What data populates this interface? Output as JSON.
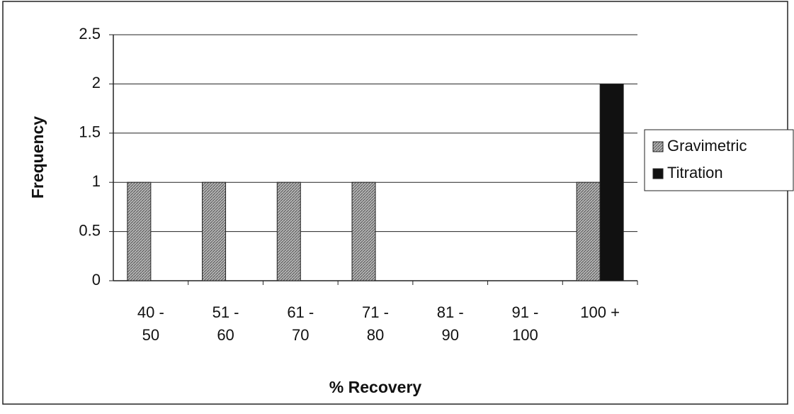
{
  "chart_data": {
    "type": "bar",
    "xlabel": "% Recovery",
    "ylabel": "Frequency",
    "categories": [
      "40 - 50",
      "51 - 60",
      "61 - 70",
      "71 - 80",
      "81 - 90",
      "91 - 100",
      "100 +"
    ],
    "series": [
      {
        "name": "Gravimetric",
        "color": "#a3a3a3",
        "values": [
          1,
          1,
          1,
          1,
          0,
          0,
          1
        ]
      },
      {
        "name": "Titration",
        "color": "#111111",
        "values": [
          0,
          0,
          0,
          0,
          0,
          0,
          2
        ]
      }
    ],
    "ylim": [
      0,
      2.5
    ],
    "yticks": [
      0,
      0.5,
      1,
      1.5,
      2,
      2.5
    ],
    "grid": true,
    "legend": "right"
  }
}
